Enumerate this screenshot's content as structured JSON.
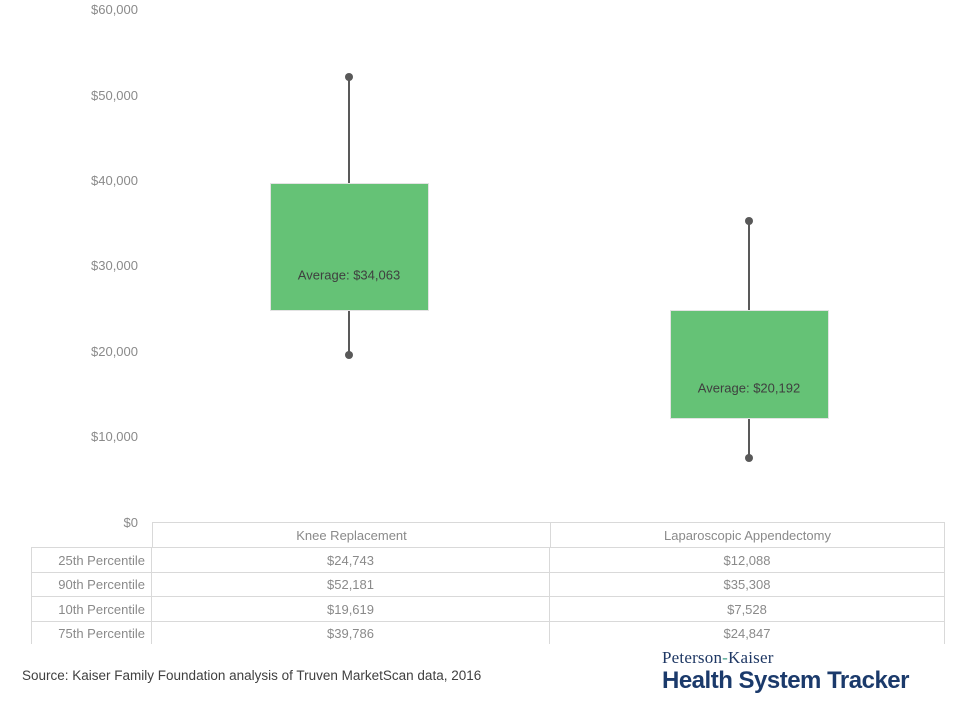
{
  "chart_data": {
    "type": "boxplot",
    "title": "",
    "categories": [
      "Knee Replacement",
      "Laparoscopic Appendectomy"
    ],
    "series": [
      {
        "name": "25th Percentile",
        "values": [
          24743,
          12088
        ]
      },
      {
        "name": "90th Percentile",
        "values": [
          52181,
          35308
        ]
      },
      {
        "name": "10th Percentile",
        "values": [
          19619,
          7528
        ]
      },
      {
        "name": "75th Percentile",
        "values": [
          39786,
          24847
        ]
      }
    ],
    "averages": [
      34063,
      20192
    ],
    "average_labels": [
      "Average: $34,063",
      "Average: $20,192"
    ],
    "ylim": [
      0,
      60000
    ],
    "yticks": [
      {
        "label": "$60,000",
        "value": 60000
      },
      {
        "label": "$50,000",
        "value": 50000
      },
      {
        "label": "$40,000",
        "value": 40000
      },
      {
        "label": "$30,000",
        "value": 30000
      },
      {
        "label": "$20,000",
        "value": 20000
      },
      {
        "label": "$10,000",
        "value": 10000
      },
      {
        "label": "$0",
        "value": 0
      }
    ],
    "grid": false,
    "legend": false
  },
  "table": {
    "columns": [
      "Knee Replacement",
      "Laparoscopic Appendectomy"
    ],
    "rows": [
      {
        "label": "25th Percentile",
        "values": [
          "$24,743",
          "$12,088"
        ]
      },
      {
        "label": "90th Percentile",
        "values": [
          "$52,181",
          "$35,308"
        ]
      },
      {
        "label": "10th Percentile",
        "values": [
          "$19,619",
          "$7,528"
        ]
      },
      {
        "label": "75th Percentile",
        "values": [
          "$39,786",
          "$24,847"
        ]
      }
    ]
  },
  "footer": {
    "source": "Source: Kaiser Family Foundation analysis of Truven MarketScan  data, 2016",
    "logo": {
      "part1": "Peterson",
      "hyphen": "-",
      "part2": "Kaiser",
      "name": "Health System Tracker"
    }
  },
  "colors": {
    "box_fill": "#65c276",
    "box_border": "#e3e3e3",
    "whisker": "#595959",
    "axis_text": "#8a8a8a",
    "table_border": "#d9d9d9",
    "avg_label_text": "#3f3f3f",
    "logo_navy": "#1b3a6b",
    "logo_hyphen_teal": "#43a089"
  }
}
